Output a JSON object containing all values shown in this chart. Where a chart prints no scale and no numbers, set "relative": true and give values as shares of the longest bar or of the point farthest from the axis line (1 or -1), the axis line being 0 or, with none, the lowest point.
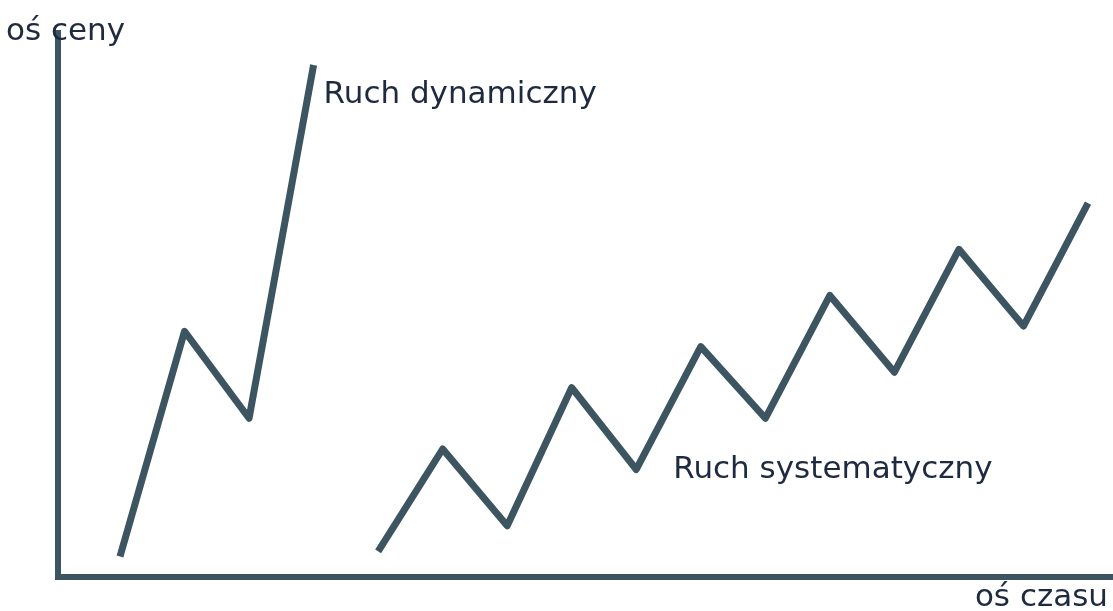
{
  "chart_data": {
    "type": "line",
    "relative": true,
    "xlabel": "oś czasu",
    "ylabel": "oś ceny",
    "categories": [
      null,
      null,
      null,
      null,
      null,
      null,
      null,
      null,
      null,
      null,
      null,
      null,
      null,
      null,
      null,
      null
    ],
    "series": [
      {
        "name": "Ruch dynamiczny",
        "color": "#3d5561",
        "values": [
          0.04,
          0.48,
          0.31,
          1,
          null,
          null,
          null,
          null,
          null,
          null,
          null,
          null,
          null,
          null,
          null,
          null
        ]
      },
      {
        "name": "Ruch systematyczny",
        "color": "#3d5561",
        "values": [
          null,
          null,
          null,
          null,
          0.05,
          0.25,
          0.1,
          0.37,
          0.21,
          0.45,
          0.31,
          0.55,
          0.4,
          0.64,
          0.49,
          0.73
        ]
      }
    ]
  }
}
